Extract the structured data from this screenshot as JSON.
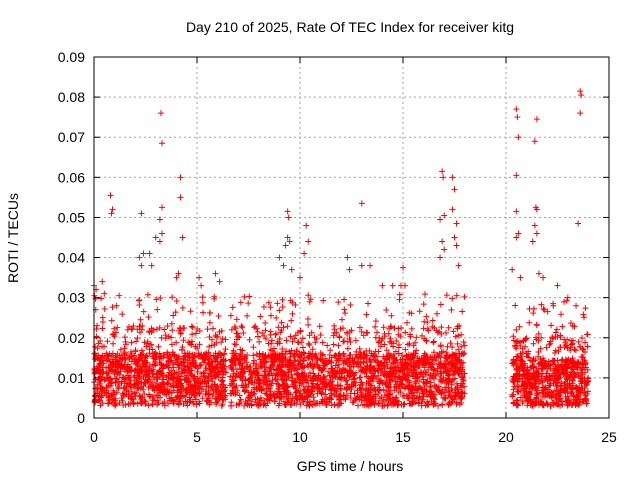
{
  "chart_data": {
    "type": "scatter",
    "title": "Day 210 of 2025, Rate Of TEC Index for receiver kitg",
    "xlabel": "GPS time / hours",
    "ylabel": "ROTI / TECUs",
    "xlim": [
      0,
      25
    ],
    "ylim": [
      0,
      0.09
    ],
    "xticks": [
      0,
      5,
      10,
      15,
      20,
      25
    ],
    "xtick_labels": [
      "0",
      "5",
      "10",
      "15",
      "20",
      "25"
    ],
    "yticks": [
      0,
      0.01,
      0.02,
      0.03,
      0.04,
      0.05,
      0.06,
      0.07,
      0.08,
      0.09
    ],
    "ytick_labels": [
      "0",
      "0.01",
      "0.02",
      "0.03",
      "0.04",
      "0.05",
      "0.06",
      "0.07",
      "0.08",
      "0.09"
    ],
    "grid": true,
    "marker": "+",
    "series": [
      {
        "name": "ROTI",
        "color": "#ff0000",
        "segments": [
          {
            "start": 0.0,
            "end": 6.4,
            "base": 0.011,
            "spread": 0.006,
            "count": 1100
          },
          {
            "start": 6.6,
            "end": 18.0,
            "base": 0.011,
            "spread": 0.006,
            "count": 1900
          },
          {
            "start": 20.3,
            "end": 24.0,
            "base": 0.0095,
            "spread": 0.0055,
            "count": 700
          }
        ],
        "outliers": [
          [
            0.0,
            0.033
          ],
          [
            0.1,
            0.032
          ],
          [
            0.4,
            0.034
          ],
          [
            0.5,
            0.031
          ],
          [
            0.8,
            0.0555
          ],
          [
            0.85,
            0.051
          ],
          [
            0.9,
            0.052
          ],
          [
            1.1,
            0.028
          ],
          [
            2.3,
            0.051
          ],
          [
            2.2,
            0.04
          ],
          [
            2.4,
            0.041
          ],
          [
            2.3,
            0.038
          ],
          [
            2.7,
            0.041
          ],
          [
            2.8,
            0.038
          ],
          [
            3.0,
            0.045
          ],
          [
            3.2,
            0.044
          ],
          [
            3.3,
            0.046
          ],
          [
            3.25,
            0.076
          ],
          [
            3.3,
            0.0685
          ],
          [
            3.2,
            0.0495
          ],
          [
            3.3,
            0.0525
          ],
          [
            4.1,
            0.036
          ],
          [
            4.2,
            0.06
          ],
          [
            4.2,
            0.055
          ],
          [
            4.3,
            0.045
          ],
          [
            4.0,
            0.035
          ],
          [
            5.1,
            0.035
          ],
          [
            5.2,
            0.033
          ],
          [
            5.9,
            0.036
          ],
          [
            6.1,
            0.034
          ],
          [
            9.0,
            0.04
          ],
          [
            9.4,
            0.0515
          ],
          [
            9.45,
            0.05
          ],
          [
            9.4,
            0.045
          ],
          [
            9.5,
            0.044
          ],
          [
            9.3,
            0.043
          ],
          [
            9.2,
            0.038
          ],
          [
            9.6,
            0.037
          ],
          [
            10.3,
            0.048
          ],
          [
            10.4,
            0.044
          ],
          [
            10.2,
            0.041
          ],
          [
            10.0,
            0.035
          ],
          [
            12.3,
            0.04
          ],
          [
            12.4,
            0.037
          ],
          [
            13.0,
            0.0535
          ],
          [
            13.0,
            0.038
          ],
          [
            13.4,
            0.038
          ],
          [
            14.0,
            0.033
          ],
          [
            14.5,
            0.033
          ],
          [
            14.9,
            0.033
          ],
          [
            15.0,
            0.0375
          ],
          [
            15.1,
            0.033
          ],
          [
            16.9,
            0.0615
          ],
          [
            16.95,
            0.06
          ],
          [
            16.8,
            0.0495
          ],
          [
            17.0,
            0.0505
          ],
          [
            16.9,
            0.044
          ],
          [
            17.0,
            0.042
          ],
          [
            16.8,
            0.04
          ],
          [
            17.4,
            0.06
          ],
          [
            17.5,
            0.057
          ],
          [
            17.4,
            0.052
          ],
          [
            17.6,
            0.0485
          ],
          [
            17.5,
            0.045
          ],
          [
            17.6,
            0.043
          ],
          [
            17.7,
            0.038
          ],
          [
            20.3,
            0.037
          ],
          [
            20.5,
            0.077
          ],
          [
            20.55,
            0.075
          ],
          [
            20.5,
            0.0605
          ],
          [
            20.6,
            0.07
          ],
          [
            20.5,
            0.0515
          ],
          [
            20.6,
            0.046
          ],
          [
            20.5,
            0.045
          ],
          [
            20.7,
            0.035
          ],
          [
            21.5,
            0.0745
          ],
          [
            21.4,
            0.069
          ],
          [
            21.45,
            0.0525
          ],
          [
            21.5,
            0.052
          ],
          [
            21.4,
            0.048
          ],
          [
            21.5,
            0.046
          ],
          [
            21.3,
            0.044
          ],
          [
            21.6,
            0.036
          ],
          [
            22.3,
            0.028
          ],
          [
            23.6,
            0.0815
          ],
          [
            23.65,
            0.0805
          ],
          [
            23.6,
            0.076
          ],
          [
            23.5,
            0.0485
          ],
          [
            22.5,
            0.033
          ],
          [
            23.0,
            0.03
          ],
          [
            23.4,
            0.028
          ],
          [
            21.8,
            0.035
          ]
        ]
      }
    ]
  }
}
